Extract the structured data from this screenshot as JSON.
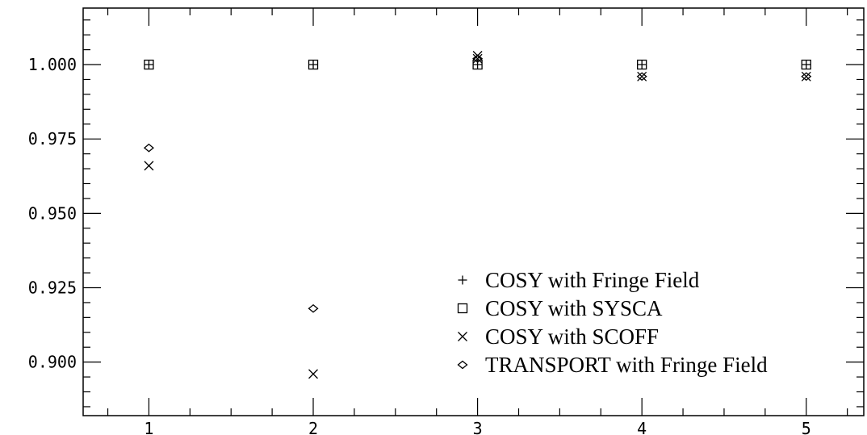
{
  "chart_data": {
    "type": "scatter",
    "x_ticks": [
      1,
      2,
      3,
      4,
      5
    ],
    "y_ticks": [
      0.9,
      0.925,
      0.95,
      0.975,
      1.0
    ],
    "y_tick_labels": [
      "0.900",
      "0.925",
      "0.950",
      "0.975",
      "1.000"
    ],
    "x_tick_labels": [
      "1",
      "2",
      "3",
      "4",
      "5"
    ],
    "xlim": [
      0.6,
      5.35
    ],
    "ylim": [
      0.882,
      1.019
    ],
    "grid": false,
    "legend_position": "bottom-right",
    "series": [
      {
        "name": "COSY with Fringe Field",
        "marker": "plus",
        "x": [
          1,
          2,
          3,
          4,
          5
        ],
        "y": [
          1.0,
          1.0,
          1.0,
          1.0,
          1.0
        ]
      },
      {
        "name": "COSY with SYSCA",
        "marker": "square",
        "x": [
          1,
          2,
          3,
          4,
          5
        ],
        "y": [
          1.0,
          1.0,
          1.0,
          1.0,
          1.0
        ]
      },
      {
        "name": "COSY with SCOFF",
        "marker": "cross",
        "x": [
          1,
          2,
          3,
          3,
          4,
          5
        ],
        "y": [
          0.966,
          0.896,
          1.002,
          1.003,
          0.996,
          0.996
        ]
      },
      {
        "name": "TRANSPORT with Fringe Field",
        "marker": "diamond",
        "x": [
          1,
          2,
          3,
          4,
          5
        ],
        "y": [
          0.972,
          0.918,
          1.002,
          0.996,
          0.996
        ]
      }
    ]
  }
}
